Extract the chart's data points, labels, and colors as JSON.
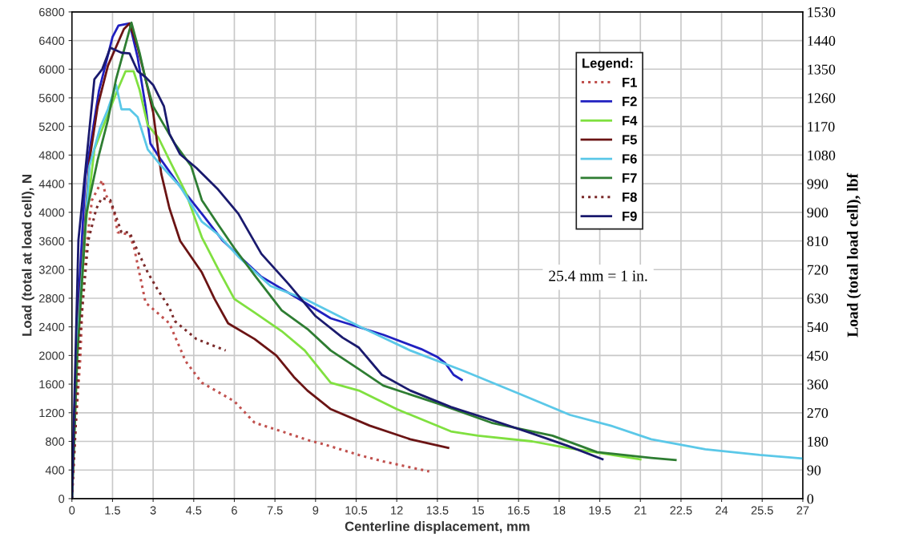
{
  "chart_data": {
    "type": "line",
    "xlabel": "Centerline displacement, mm",
    "ylabel": "Load (total at load cell), N",
    "y2label": "Load (total load cell), lbf",
    "legend_title": "Legend:",
    "legend": "top right",
    "grid": true,
    "marker": "none",
    "annotations": [
      "25.4 mm = 1 in."
    ],
    "xlim": [
      0,
      27
    ],
    "xticks": [
      0,
      1.5,
      3,
      4.5,
      6,
      7.5,
      9,
      10.5,
      12,
      13.5,
      15,
      16.5,
      18,
      19.5,
      21,
      22.5,
      24,
      25.5,
      27
    ],
    "ylim": [
      0,
      6800
    ],
    "yticks": [
      0,
      400,
      800,
      1200,
      1600,
      2000,
      2400,
      2800,
      3200,
      3600,
      4000,
      4400,
      4800,
      5200,
      5600,
      6000,
      6400,
      6800
    ],
    "y2lim": [
      0,
      1530
    ],
    "y2ticks": [
      0,
      90,
      180,
      270,
      360,
      450,
      540,
      630,
      720,
      810,
      900,
      990,
      1080,
      1170,
      1260,
      1350,
      1440,
      1530
    ],
    "series": [
      {
        "name": "F1",
        "color": "#c0504d",
        "line_style": "dotted",
        "x": [
          0,
          0.1,
          0.3,
          0.45,
          0.74,
          1.12,
          1.24,
          1.42,
          1.57,
          1.69,
          2.13,
          2.3,
          2.72,
          3.6,
          4.2,
          4.8,
          6.0,
          6.75,
          7.75,
          8.7,
          9.3,
          10.6,
          11.5,
          13.2
        ],
        "values": [
          0,
          800,
          1900,
          3260,
          4170,
          4450,
          4250,
          4140,
          3980,
          3720,
          3690,
          3500,
          2740,
          2450,
          1920,
          1620,
          1360,
          1060,
          940,
          820,
          760,
          610,
          520,
          380
        ]
      },
      {
        "name": "F2",
        "color": "#2020c0",
        "x": [
          0,
          0.2,
          0.5,
          1.0,
          1.5,
          1.72,
          2.13,
          2.43,
          2.72,
          2.9,
          3.3,
          4.0,
          4.8,
          5.56,
          7.0,
          8.6,
          9.56,
          11.5,
          12.9,
          13.5,
          13.8,
          14.1,
          14.4
        ],
        "values": [
          0,
          2500,
          4500,
          5700,
          6450,
          6610,
          6640,
          6160,
          5480,
          4960,
          4730,
          4360,
          3980,
          3610,
          3100,
          2740,
          2520,
          2290,
          2090,
          1980,
          1890,
          1730,
          1660
        ]
      },
      {
        "name": "F4",
        "color": "#80e040",
        "x": [
          0,
          0.2,
          0.5,
          0.83,
          1.33,
          1.63,
          1.98,
          2.28,
          2.5,
          2.8,
          3.2,
          3.6,
          4.2,
          4.8,
          5.47,
          6.0,
          6.75,
          7.75,
          8.6,
          9.56,
          10.6,
          12.0,
          14.0,
          15.0,
          17.0,
          18.3,
          21.0
        ],
        "values": [
          0,
          2000,
          3800,
          4880,
          5370,
          5660,
          5970,
          5970,
          5710,
          5220,
          5040,
          4730,
          4280,
          3650,
          3160,
          2790,
          2600,
          2340,
          2070,
          1620,
          1510,
          1250,
          940,
          880,
          800,
          710,
          550
        ]
      },
      {
        "name": "F5",
        "color": "#6b1414",
        "x": [
          0,
          0.2,
          0.65,
          0.95,
          1.33,
          1.92,
          2.13,
          2.43,
          2.72,
          3.0,
          3.3,
          3.6,
          4.0,
          4.8,
          5.27,
          5.77,
          6.75,
          7.55,
          8.2,
          8.7,
          9.56,
          11.0,
          12.5,
          13.9
        ],
        "values": [
          0,
          2300,
          4730,
          5480,
          6050,
          6560,
          6640,
          6300,
          5860,
          5400,
          4540,
          4060,
          3600,
          3160,
          2790,
          2450,
          2230,
          2000,
          1700,
          1510,
          1250,
          1020,
          830,
          710
        ]
      },
      {
        "name": "F6",
        "color": "#5bc8e8",
        "x": [
          0,
          0.2,
          0.65,
          1.04,
          1.33,
          1.63,
          1.83,
          2.13,
          2.43,
          2.8,
          3.3,
          4.0,
          4.8,
          5.4,
          6.15,
          7.34,
          8.6,
          10.6,
          12.5,
          14.5,
          16.5,
          18.4,
          19.9,
          21.4,
          23.4,
          25.4,
          27
        ],
        "values": [
          0,
          2200,
          4650,
          5180,
          5440,
          5780,
          5440,
          5440,
          5330,
          4880,
          4650,
          4360,
          3870,
          3690,
          3380,
          2970,
          2790,
          2410,
          2070,
          1780,
          1470,
          1170,
          1020,
          830,
          690,
          610,
          560
        ]
      },
      {
        "name": "F7",
        "color": "#2e7d32",
        "x": [
          0,
          0.2,
          0.53,
          0.95,
          1.33,
          1.63,
          2.2,
          2.5,
          2.72,
          3.0,
          3.8,
          4.4,
          4.8,
          5.4,
          6.0,
          6.75,
          7.75,
          8.7,
          9.56,
          10.6,
          11.5,
          13.5,
          15.5,
          17.75,
          19.4,
          21.4,
          22.3
        ],
        "values": [
          0,
          2000,
          3980,
          4730,
          5290,
          5860,
          6650,
          6230,
          5860,
          5480,
          4960,
          4650,
          4170,
          3830,
          3500,
          3120,
          2630,
          2370,
          2070,
          1810,
          1580,
          1330,
          1060,
          880,
          650,
          570,
          540
        ]
      },
      {
        "name": "F8",
        "color": "#7a2a2a",
        "line_style": "dotted",
        "x": [
          0,
          0.1,
          0.3,
          0.6,
          0.9,
          1.1,
          1.42,
          1.83,
          2.13,
          2.43,
          2.8,
          3.2,
          3.6,
          3.8,
          4.6,
          5.68
        ],
        "values": [
          0,
          700,
          2300,
          3600,
          4050,
          4200,
          4170,
          3720,
          3720,
          3460,
          3160,
          2900,
          2670,
          2480,
          2230,
          2070
        ]
      },
      {
        "name": "F9",
        "color": "#1a1a6e",
        "x": [
          0,
          0.24,
          0.83,
          1.12,
          1.42,
          1.83,
          2.13,
          2.43,
          2.72,
          3.0,
          3.4,
          3.6,
          4.0,
          4.6,
          5.4,
          6.15,
          7.0,
          8.0,
          9.0,
          10.0,
          10.6,
          11.45,
          12.5,
          14.0,
          15.5,
          17.0,
          18.3,
          19.6
        ],
        "values": [
          0,
          3610,
          5860,
          6000,
          6300,
          6230,
          6220,
          5970,
          5890,
          5780,
          5480,
          5100,
          4810,
          4620,
          4320,
          3980,
          3420,
          3000,
          2550,
          2250,
          2110,
          1730,
          1510,
          1280,
          1100,
          910,
          740,
          550
        ]
      }
    ]
  }
}
